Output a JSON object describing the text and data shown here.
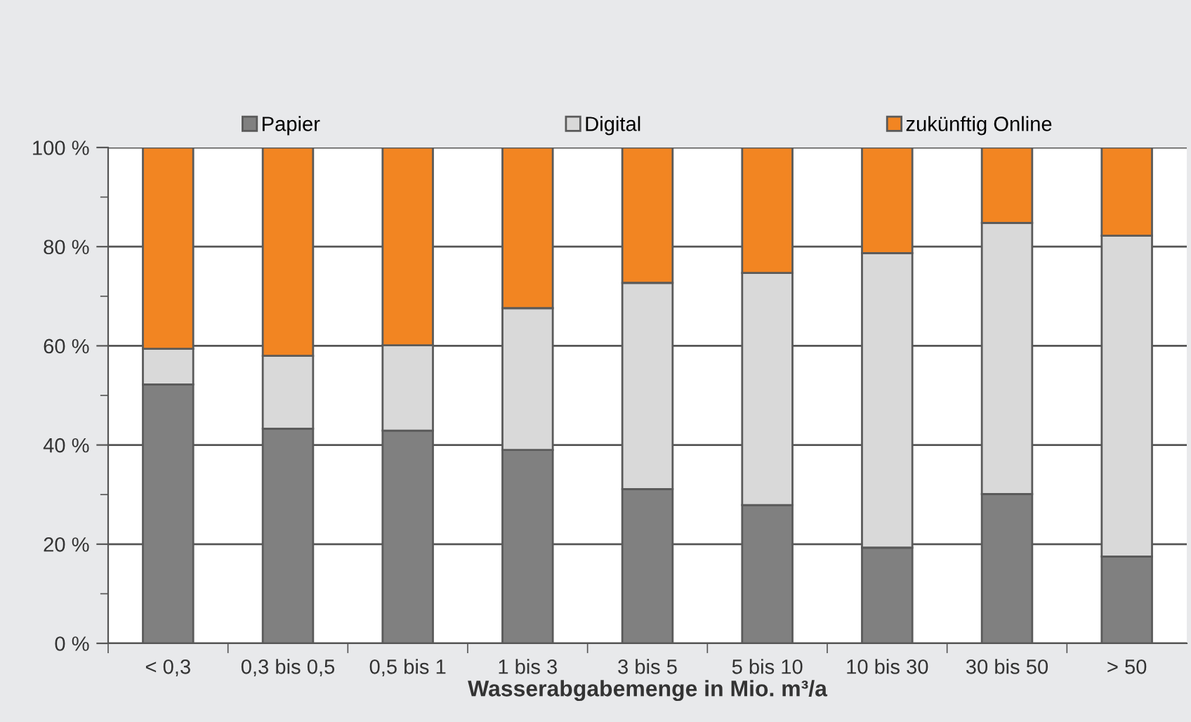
{
  "chart_data": {
    "type": "bar",
    "stacked": true,
    "xlabel": "Wasserabgabemenge in Mio. m³/a",
    "categories": [
      "< 0,3",
      "0,3 bis 0,5",
      "0,5 bis 1",
      "1 bis 3",
      "3 bis 5",
      "5 bis 10",
      "10 bis 30",
      "30 bis 50",
      "> 50"
    ],
    "series": [
      {
        "name": "Papier",
        "color": "#808080",
        "values": [
          52.2,
          43.3,
          42.9,
          39.0,
          31.1,
          27.9,
          19.3,
          30.1,
          17.5
        ]
      },
      {
        "name": "Digital",
        "color": "#d9d9d9",
        "values": [
          7.2,
          14.7,
          17.2,
          28.6,
          41.6,
          46.8,
          59.4,
          54.7,
          64.7
        ]
      },
      {
        "name": "zukünftig Online",
        "color": "#f28522",
        "values": [
          40.6,
          42.0,
          39.9,
          32.4,
          27.3,
          25.3,
          21.3,
          15.2,
          17.8
        ]
      }
    ],
    "ylim": [
      0,
      100
    ],
    "yticks": [
      {
        "value": 0,
        "label": "0 %"
      },
      {
        "value": 10,
        "label": null
      },
      {
        "value": 20,
        "label": "20 %"
      },
      {
        "value": 30,
        "label": null
      },
      {
        "value": 40,
        "label": "40 %"
      },
      {
        "value": 50,
        "label": null
      },
      {
        "value": 60,
        "label": "60 %"
      },
      {
        "value": 70,
        "label": null
      },
      {
        "value": 80,
        "label": "80 %"
      },
      {
        "value": 90,
        "label": null
      },
      {
        "value": 100,
        "label": "100 %"
      }
    ],
    "grid": "y",
    "legend": "top"
  }
}
